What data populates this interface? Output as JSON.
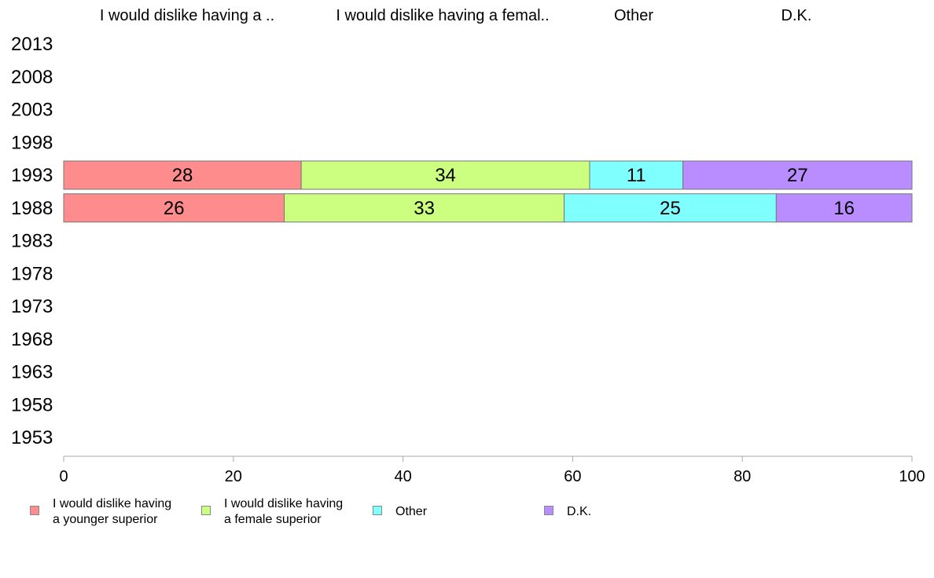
{
  "chart_data": {
    "type": "bar",
    "orientation": "horizontal",
    "stacked": true,
    "categories": [
      "2013",
      "2008",
      "2003",
      "1998",
      "1993",
      "1988",
      "1983",
      "1978",
      "1973",
      "1968",
      "1963",
      "1958",
      "1953"
    ],
    "column_headers": [
      "I would dislike having a ..",
      "I would dislike having a femal..",
      "Other",
      "D.K."
    ],
    "series": [
      {
        "name": "I would dislike having a younger superior",
        "legend_lines": [
          "I would dislike having",
          "a younger superior"
        ],
        "color": "#ff8c8c",
        "values": [
          null,
          null,
          null,
          null,
          28,
          26,
          null,
          null,
          null,
          null,
          null,
          null,
          null
        ]
      },
      {
        "name": "I would dislike having a female superior",
        "legend_lines": [
          "I would dislike having",
          "a female superior"
        ],
        "color": "#ccff80",
        "values": [
          null,
          null,
          null,
          null,
          34,
          33,
          null,
          null,
          null,
          null,
          null,
          null,
          null
        ]
      },
      {
        "name": "Other",
        "legend_lines": [
          "Other"
        ],
        "color": "#80ffff",
        "values": [
          null,
          null,
          null,
          null,
          11,
          25,
          null,
          null,
          null,
          null,
          null,
          null,
          null
        ]
      },
      {
        "name": "D.K.",
        "legend_lines": [
          "D.K."
        ],
        "color": "#b98cff",
        "values": [
          null,
          null,
          null,
          null,
          27,
          16,
          null,
          null,
          null,
          null,
          null,
          null,
          null
        ]
      }
    ],
    "xlim": [
      0,
      100
    ],
    "x_ticks": [
      0,
      20,
      40,
      60,
      80,
      100
    ],
    "grid": false,
    "legend_position": "bottom"
  }
}
